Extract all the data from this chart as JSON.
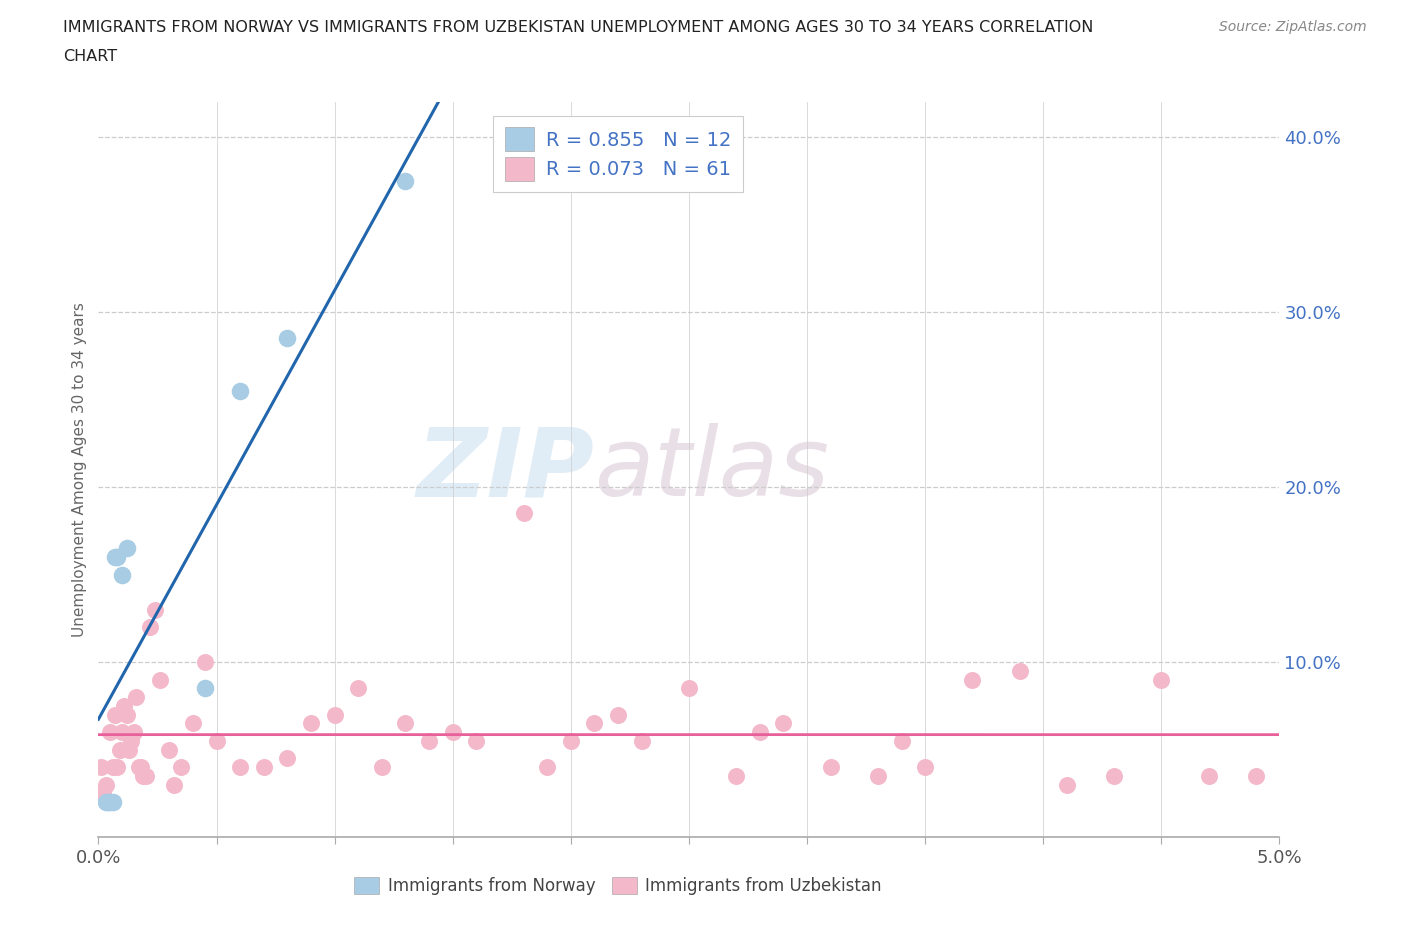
{
  "title_line1": "IMMIGRANTS FROM NORWAY VS IMMIGRANTS FROM UZBEKISTAN UNEMPLOYMENT AMONG AGES 30 TO 34 YEARS CORRELATION",
  "title_line2": "CHART",
  "source": "Source: ZipAtlas.com",
  "ylabel": "Unemployment Among Ages 30 to 34 years",
  "norway_scatter_color": "#a8cce4",
  "uzbekistan_scatter_color": "#f4b8cb",
  "norway_line_color": "#2166ac",
  "uzbekistan_line_color": "#e8609a",
  "norway_r": 0.855,
  "norway_n": 12,
  "uzbekistan_r": 0.073,
  "uzbekistan_n": 61,
  "watermark_zip": "ZIP",
  "watermark_atlas": "atlas",
  "right_label_color": "#4472c4",
  "legend_text_color": "#4472c4",
  "norway_x": [
    0.0003,
    0.0004,
    0.0005,
    0.0006,
    0.0007,
    0.0008,
    0.001,
    0.0012,
    0.0045,
    0.006,
    0.008,
    0.013
  ],
  "norway_y": [
    0.02,
    0.02,
    0.02,
    0.02,
    0.16,
    0.16,
    0.15,
    0.165,
    0.085,
    0.255,
    0.285,
    0.375
  ],
  "uzbekistan_x": [
    0.0001,
    0.0002,
    0.0003,
    0.0004,
    0.0005,
    0.0006,
    0.0007,
    0.0008,
    0.0009,
    0.001,
    0.0011,
    0.0012,
    0.0013,
    0.0014,
    0.0015,
    0.0016,
    0.0017,
    0.0018,
    0.0019,
    0.002,
    0.0022,
    0.0024,
    0.0026,
    0.003,
    0.0032,
    0.0035,
    0.004,
    0.0045,
    0.005,
    0.006,
    0.007,
    0.008,
    0.009,
    0.01,
    0.011,
    0.012,
    0.013,
    0.014,
    0.015,
    0.016,
    0.018,
    0.019,
    0.021,
    0.023,
    0.025,
    0.027,
    0.029,
    0.031,
    0.033,
    0.035,
    0.037,
    0.039,
    0.041,
    0.043,
    0.045,
    0.047,
    0.049,
    0.02,
    0.022,
    0.028,
    0.034
  ],
  "uzbekistan_y": [
    0.04,
    0.025,
    0.03,
    0.02,
    0.06,
    0.04,
    0.07,
    0.04,
    0.05,
    0.06,
    0.075,
    0.07,
    0.05,
    0.055,
    0.06,
    0.08,
    0.04,
    0.04,
    0.035,
    0.035,
    0.12,
    0.13,
    0.09,
    0.05,
    0.03,
    0.04,
    0.065,
    0.1,
    0.055,
    0.04,
    0.04,
    0.045,
    0.065,
    0.07,
    0.085,
    0.04,
    0.065,
    0.055,
    0.06,
    0.055,
    0.185,
    0.04,
    0.065,
    0.055,
    0.085,
    0.035,
    0.065,
    0.04,
    0.035,
    0.04,
    0.09,
    0.095,
    0.03,
    0.035,
    0.09,
    0.035,
    0.035,
    0.055,
    0.07,
    0.06,
    0.055
  ],
  "xmin": 0.0,
  "xmax": 0.05,
  "ymin": 0.0,
  "ymax": 0.42,
  "ytick_positions": [
    0.1,
    0.2,
    0.3,
    0.4
  ],
  "ytick_labels": [
    "10.0%",
    "20.0%",
    "30.0%",
    "40.0%"
  ],
  "background_color": "#ffffff",
  "grid_color": "#cccccc",
  "axis_color": "#aaaaaa"
}
